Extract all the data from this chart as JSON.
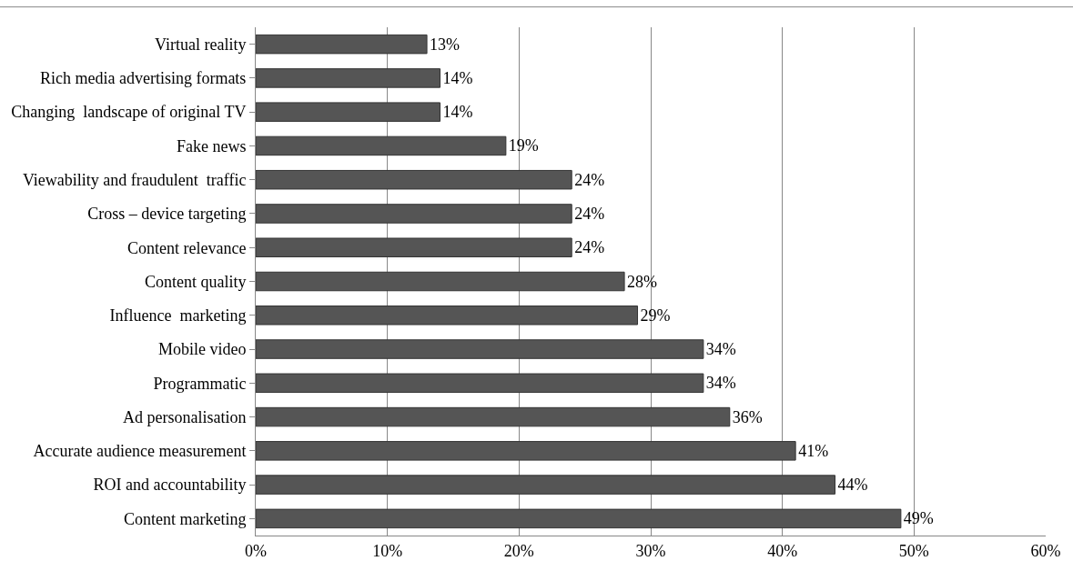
{
  "chart_data": {
    "type": "bar",
    "orientation": "horizontal",
    "categories": [
      "Virtual reality",
      "Rich media advertising formats",
      "Changing  landscape of original TV",
      "Fake news",
      "Viewability and fraudulent  traffic",
      "Cross – device targeting",
      "Content relevance",
      "Content quality",
      "Influence  marketing",
      "Mobile video",
      "Programmatic",
      "Ad personalisation",
      "Accurate audience measurement",
      "ROI and accountability",
      "Content marketing"
    ],
    "values": [
      13,
      14,
      14,
      19,
      24,
      24,
      24,
      28,
      29,
      34,
      34,
      36,
      41,
      44,
      49
    ],
    "value_labels": [
      "13%",
      "14%",
      "14%",
      "19%",
      "24%",
      "24%",
      "24%",
      "28%",
      "29%",
      "34%",
      "34%",
      "36%",
      "41%",
      "44%",
      "49%"
    ],
    "color": "#555555",
    "xlim": [
      0,
      60
    ],
    "xticks": [
      {
        "value": 0,
        "label": "0%"
      },
      {
        "value": 10,
        "label": "10%"
      },
      {
        "value": 20,
        "label": "20%"
      },
      {
        "value": 30,
        "label": "30%"
      },
      {
        "value": 40,
        "label": "40%"
      },
      {
        "value": 50,
        "label": "50%"
      },
      {
        "value": 60,
        "label": "60%"
      }
    ],
    "grid": "x",
    "legend": false
  }
}
